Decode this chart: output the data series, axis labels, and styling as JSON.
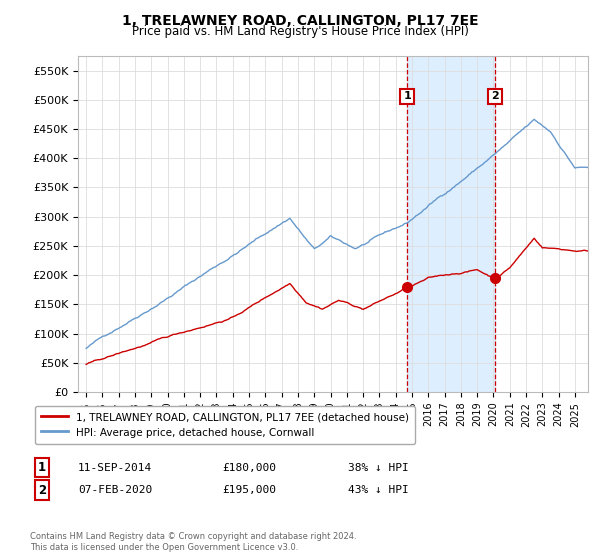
{
  "title": "1, TRELAWNEY ROAD, CALLINGTON, PL17 7EE",
  "subtitle": "Price paid vs. HM Land Registry's House Price Index (HPI)",
  "legend_label_red": "1, TRELAWNEY ROAD, CALLINGTON, PL17 7EE (detached house)",
  "legend_label_blue": "HPI: Average price, detached house, Cornwall",
  "footnote": "Contains HM Land Registry data © Crown copyright and database right 2024.\nThis data is licensed under the Open Government Licence v3.0.",
  "transaction1_date": "11-SEP-2014",
  "transaction1_price": "£180,000",
  "transaction1_hpi": "38% ↓ HPI",
  "transaction2_date": "07-FEB-2020",
  "transaction2_price": "£195,000",
  "transaction2_hpi": "43% ↓ HPI",
  "transaction1_year": 2014.7,
  "transaction2_year": 2020.1,
  "transaction1_value": 180000,
  "transaction2_value": 195000,
  "ylim": [
    0,
    575000
  ],
  "yticks": [
    0,
    50000,
    100000,
    150000,
    200000,
    250000,
    300000,
    350000,
    400000,
    450000,
    500000,
    550000
  ],
  "red_color": "#cc0000",
  "blue_color": "#6699cc",
  "shade_color": "#ddeeff",
  "vline_color": "#cc0000",
  "background_color": "#ffffff",
  "grid_color": "#dddddd"
}
